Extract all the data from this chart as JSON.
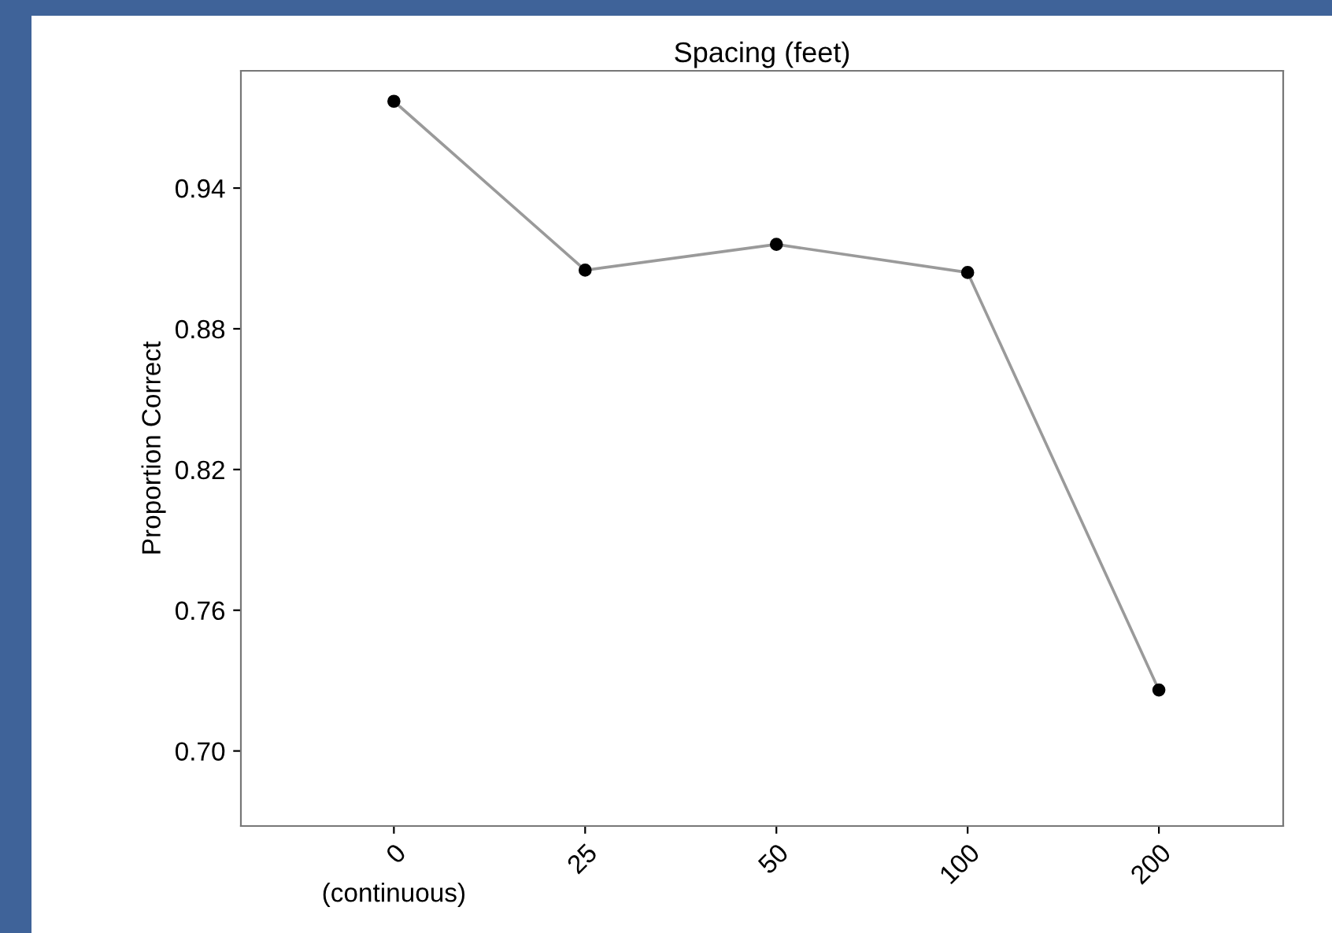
{
  "chart_data": {
    "type": "line",
    "title": "Spacing (feet)",
    "ylabel": "Proportion Correct",
    "categories": [
      "0\n(continuous)",
      "25",
      "50",
      "100",
      "200"
    ],
    "series": [
      {
        "color": "#9a9a9a",
        "values": [
          0.977,
          0.905,
          0.916,
          0.904,
          0.726
        ]
      }
    ],
    "ylim": [
      0.668,
      0.99
    ],
    "yticks": [
      0.94,
      0.88,
      0.82,
      0.76,
      {
        "value": 0.7,
        "label": "0.70"
      }
    ],
    "marker": "circle",
    "line_style": "solid",
    "grid": false
  }
}
